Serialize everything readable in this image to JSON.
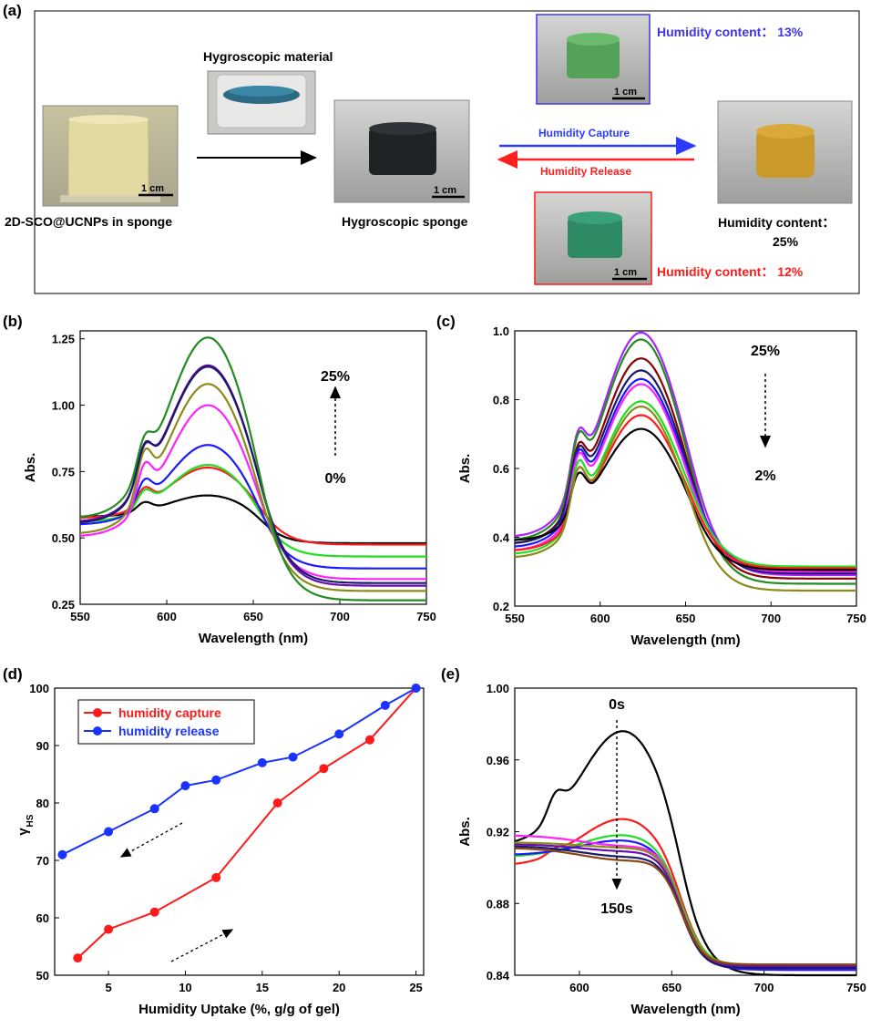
{
  "panel_a": {
    "letter": "(a)",
    "hygroscopic_material_label": "Hygroscopic material",
    "sponge_label": "2D-SCO@UCNPs in sponge",
    "hygroscopic_sponge_label": "Hygroscopic sponge",
    "capture_label": "Humidity Capture",
    "release_label": "Humidity Release",
    "humidity_13": "Humidity content： 13%",
    "humidity_25_line1": "Humidity content：",
    "humidity_25_line2": "25%",
    "humidity_12": "Humidity content： 12%",
    "scale_bar_label": "1 cm",
    "colors": {
      "capture": "#2d3bff",
      "release": "#ff1f1f",
      "label_13": "#3d36e8",
      "label_12": "#ff1a1a"
    }
  },
  "panel_letters": {
    "b": "(b)",
    "c": "(c)",
    "d": "(d)",
    "e": "(e)"
  },
  "chart_data": [
    {
      "panel": "b",
      "type": "line",
      "xlabel": "Wavelength (nm)",
      "ylabel": "Abs.",
      "xlim": [
        550,
        750
      ],
      "ylim": [
        0.25,
        1.28
      ],
      "xticks": [
        "550",
        "600",
        "650",
        "700",
        "750"
      ],
      "yticks": [
        "0.25",
        "0.50",
        "0.75",
        "1.00",
        "1.25"
      ],
      "annotation_top": "25%",
      "annotation_bottom": "0%",
      "series": [
        {
          "color": "#000000",
          "peak": 0.66,
          "shoulder": 0.635,
          "start": 0.58,
          "end": 0.48
        },
        {
          "color": "#ff1a1a",
          "peak": 0.765,
          "shoulder": 0.69,
          "start": 0.575,
          "end": 0.475
        },
        {
          "color": "#22dd22",
          "peak": 0.775,
          "shoulder": 0.68,
          "start": 0.56,
          "end": 0.43
        },
        {
          "color": "#1a1aff",
          "peak": 0.85,
          "shoulder": 0.72,
          "start": 0.55,
          "end": 0.385
        },
        {
          "color": "#ff22ff",
          "peak": 1.0,
          "shoulder": 0.78,
          "start": 0.505,
          "end": 0.345
        },
        {
          "color": "#8b8b1a",
          "peak": 1.08,
          "shoulder": 0.83,
          "start": 0.515,
          "end": 0.3
        },
        {
          "color": "#6a0dad",
          "peak": 1.15,
          "shoulder": 0.85,
          "start": 0.56,
          "end": 0.32
        },
        {
          "color": "#1a1a6a",
          "peak": 1.145,
          "shoulder": 0.855,
          "start": 0.555,
          "end": 0.33
        },
        {
          "color": "#228b22",
          "peak": 1.255,
          "shoulder": 0.885,
          "start": 0.575,
          "end": 0.265
        }
      ]
    },
    {
      "panel": "c",
      "type": "line",
      "xlabel": "Wavelength (nm)",
      "ylabel": "Abs.",
      "xlim": [
        550,
        750
      ],
      "ylim": [
        0.2,
        1.0
      ],
      "xticks": [
        "550",
        "600",
        "650",
        "700",
        "750"
      ],
      "yticks": [
        "0.2",
        "0.4",
        "0.6",
        "0.8",
        "1.0"
      ],
      "annotation_top": "25%",
      "annotation_bottom": "2%",
      "series": [
        {
          "color": "#aa22ff",
          "peak": 0.995,
          "shoulder": 0.71,
          "start": 0.4,
          "end": 0.29
        },
        {
          "color": "#228b22",
          "peak": 0.975,
          "shoulder": 0.7,
          "start": 0.39,
          "end": 0.265
        },
        {
          "color": "#8b0000",
          "peak": 0.92,
          "shoulder": 0.67,
          "start": 0.38,
          "end": 0.28
        },
        {
          "color": "#1a1a6a",
          "peak": 0.885,
          "shoulder": 0.66,
          "start": 0.38,
          "end": 0.295
        },
        {
          "color": "#1a1aff",
          "peak": 0.86,
          "shoulder": 0.65,
          "start": 0.37,
          "end": 0.305
        },
        {
          "color": "#ff22ff",
          "peak": 0.845,
          "shoulder": 0.64,
          "start": 0.36,
          "end": 0.3
        },
        {
          "color": "#22dd22",
          "peak": 0.795,
          "shoulder": 0.62,
          "start": 0.35,
          "end": 0.315
        },
        {
          "color": "#ff1a1a",
          "peak": 0.755,
          "shoulder": 0.6,
          "start": 0.36,
          "end": 0.31
        },
        {
          "color": "#000000",
          "peak": 0.715,
          "shoulder": 0.585,
          "start": 0.39,
          "end": 0.305
        },
        {
          "color": "#8b8b1a",
          "peak": 0.78,
          "shoulder": 0.6,
          "start": 0.34,
          "end": 0.245
        }
      ]
    },
    {
      "panel": "d",
      "type": "line",
      "xlabel": "Humidity Uptake (%, g/g of gel)",
      "ylabel": "γ",
      "ylabel_sub": "HS",
      "xlim": [
        1.5,
        25.5
      ],
      "ylim": [
        50,
        100
      ],
      "xticks": [
        5,
        10,
        15,
        20,
        25
      ],
      "yticks": [
        50,
        60,
        70,
        80,
        90,
        100
      ],
      "series": [
        {
          "name": "humidity capture",
          "color": "#ff1a1a",
          "x": [
            3,
            5,
            8,
            12,
            16,
            19,
            22,
            25
          ],
          "y": [
            53,
            58,
            61,
            67,
            80,
            86,
            91,
            100
          ]
        },
        {
          "name": "humidity release",
          "color": "#1a33ff",
          "x": [
            2,
            5,
            8,
            10,
            12,
            15,
            17,
            20,
            23,
            25
          ],
          "y": [
            71,
            75,
            79,
            83,
            84,
            87,
            88,
            92,
            97,
            100
          ]
        }
      ]
    },
    {
      "panel": "e",
      "type": "line",
      "xlabel": "Wavelength (nm)",
      "ylabel": "Abs.",
      "xlim": [
        565,
        750
      ],
      "ylim": [
        0.84,
        1.0
      ],
      "xticks": [
        "600",
        "650",
        "700",
        "750"
      ],
      "yticks": [
        "0.84",
        "0.88",
        "0.92",
        "0.96",
        "1.00"
      ],
      "annotation_top": "0s",
      "annotation_bottom": "150s",
      "series": [
        {
          "color": "#000000",
          "peak": 0.976,
          "shoulder": 0.942,
          "start": 0.912,
          "end": 0.84
        },
        {
          "color": "#ff1a1a",
          "peak": 0.927,
          "shoulder": 0.911,
          "start": 0.901,
          "end": 0.843
        },
        {
          "color": "#22dd22",
          "peak": 0.918,
          "shoulder": 0.909,
          "start": 0.906,
          "end": 0.845
        },
        {
          "color": "#1a1aff",
          "peak": 0.915,
          "shoulder": 0.907,
          "start": 0.907,
          "end": 0.843
        },
        {
          "color": "#ff22ff",
          "peak": 0.912,
          "shoulder": 0.912,
          "start": 0.918,
          "end": 0.844
        },
        {
          "color": "#8b8b1a",
          "peak": 0.911,
          "shoulder": 0.909,
          "start": 0.914,
          "end": 0.846
        },
        {
          "color": "#6a0dad",
          "peak": 0.909,
          "shoulder": 0.908,
          "start": 0.913,
          "end": 0.845
        },
        {
          "color": "#1a1a6a",
          "peak": 0.906,
          "shoulder": 0.907,
          "start": 0.912,
          "end": 0.844
        },
        {
          "color": "#8b4513",
          "peak": 0.904,
          "shoulder": 0.906,
          "start": 0.911,
          "end": 0.846
        }
      ]
    }
  ]
}
